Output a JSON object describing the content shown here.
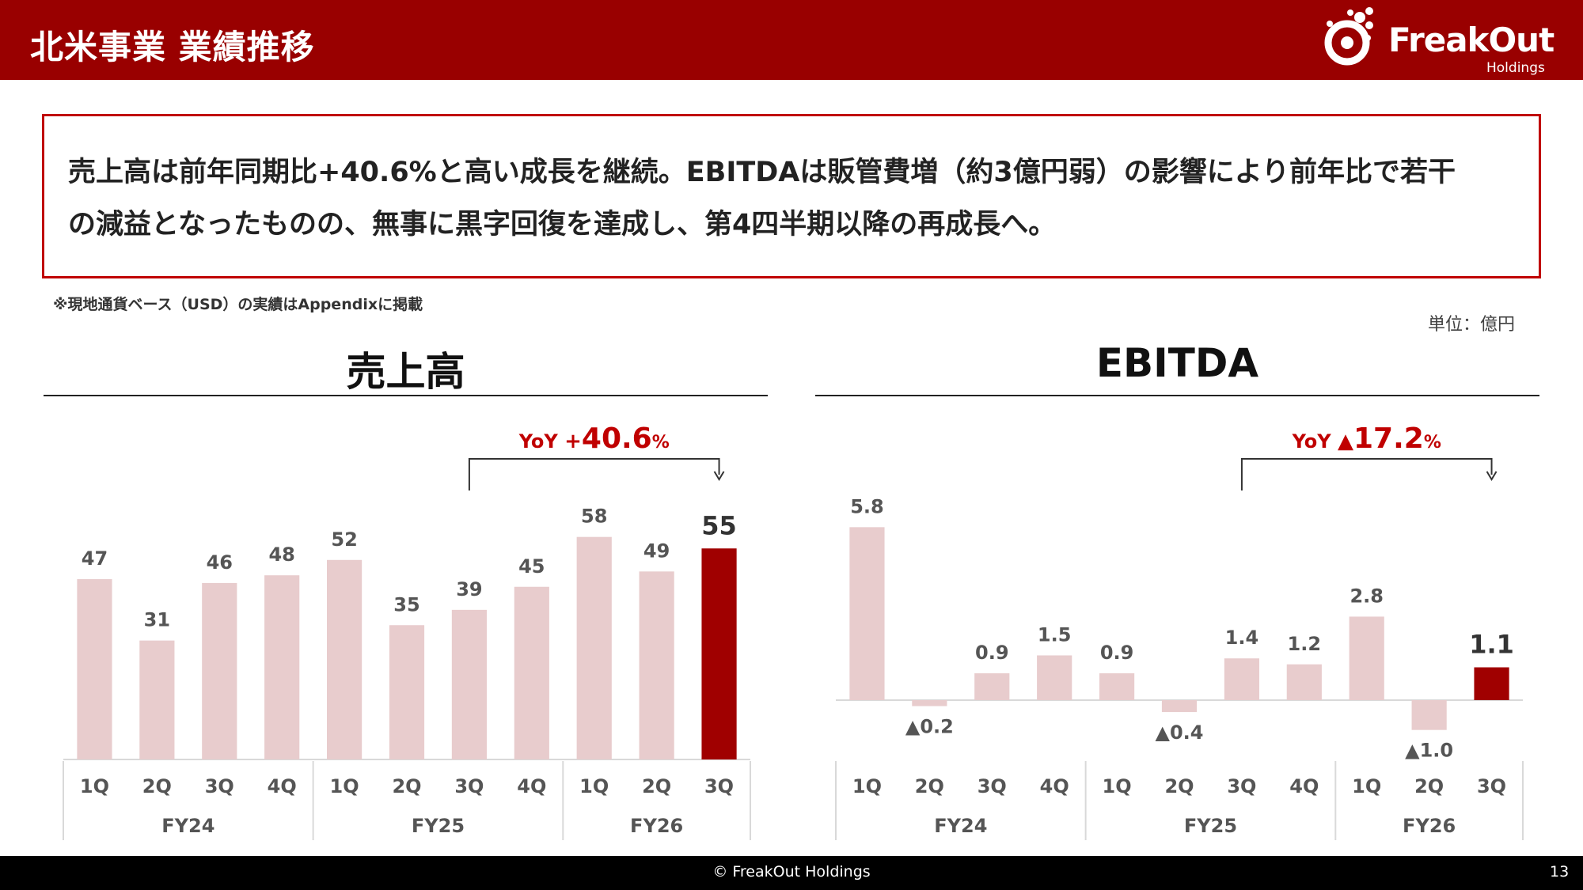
{
  "header": {
    "title": "北米事業 業績推移"
  },
  "logo": {
    "name": "FreakOut",
    "sub": "Holdings"
  },
  "summary": {
    "line1": "売上高は前年同期比+40.6%と高い成長を継続。EBITDAは販管費増（約3億円弱）の影響により前年比で若干",
    "line2": "の減益となったものの、無事に黒字回復を達成し、第4四半期以降の再成長へ。"
  },
  "note": "※現地通貨ベース（USD）の実績はAppendixに掲載",
  "unit": "単位：億円",
  "colors": {
    "brand": "#990000",
    "highlight": "#a00000",
    "bar": "#e8cccd",
    "accent_text": "#c00000"
  },
  "footer": {
    "copyright": "© FreakOut Holdings",
    "page": "13"
  },
  "chart_data": [
    {
      "type": "bar",
      "title": "売上高",
      "categories": [
        "1Q",
        "2Q",
        "3Q",
        "4Q",
        "1Q",
        "2Q",
        "3Q",
        "4Q",
        "1Q",
        "2Q",
        "3Q"
      ],
      "groups": [
        {
          "label": "FY24",
          "count": 4
        },
        {
          "label": "FY25",
          "count": 4
        },
        {
          "label": "FY26",
          "count": 3
        }
      ],
      "values": [
        47,
        31,
        46,
        48,
        52,
        35,
        39,
        45,
        58,
        49,
        55
      ],
      "labels": [
        "47",
        "31",
        "46",
        "48",
        "52",
        "35",
        "39",
        "45",
        "58",
        "49",
        "55"
      ],
      "highlight_index": 10,
      "yoy": {
        "prefix": "YoY ",
        "sign": "+",
        "value": "40.6",
        "unit": "%",
        "from_index": 6,
        "to_index": 10
      },
      "ylim": [
        0,
        60
      ]
    },
    {
      "type": "bar",
      "title": "EBITDA",
      "categories": [
        "1Q",
        "2Q",
        "3Q",
        "4Q",
        "1Q",
        "2Q",
        "3Q",
        "4Q",
        "1Q",
        "2Q",
        "3Q"
      ],
      "groups": [
        {
          "label": "FY24",
          "count": 4
        },
        {
          "label": "FY25",
          "count": 4
        },
        {
          "label": "FY26",
          "count": 3
        }
      ],
      "values": [
        5.8,
        -0.2,
        0.9,
        1.5,
        0.9,
        -0.4,
        1.4,
        1.2,
        2.8,
        -1.0,
        1.1
      ],
      "labels": [
        "5.8",
        "▲0.2",
        "0.9",
        "1.5",
        "0.9",
        "▲0.4",
        "1.4",
        "1.2",
        "2.8",
        "▲1.0",
        "1.1"
      ],
      "highlight_index": 10,
      "yoy": {
        "prefix": "YoY ",
        "sign": "▲",
        "value": "17.2",
        "unit": "%",
        "from_index": 6,
        "to_index": 10
      },
      "ylim": [
        -1.5,
        6
      ]
    }
  ]
}
